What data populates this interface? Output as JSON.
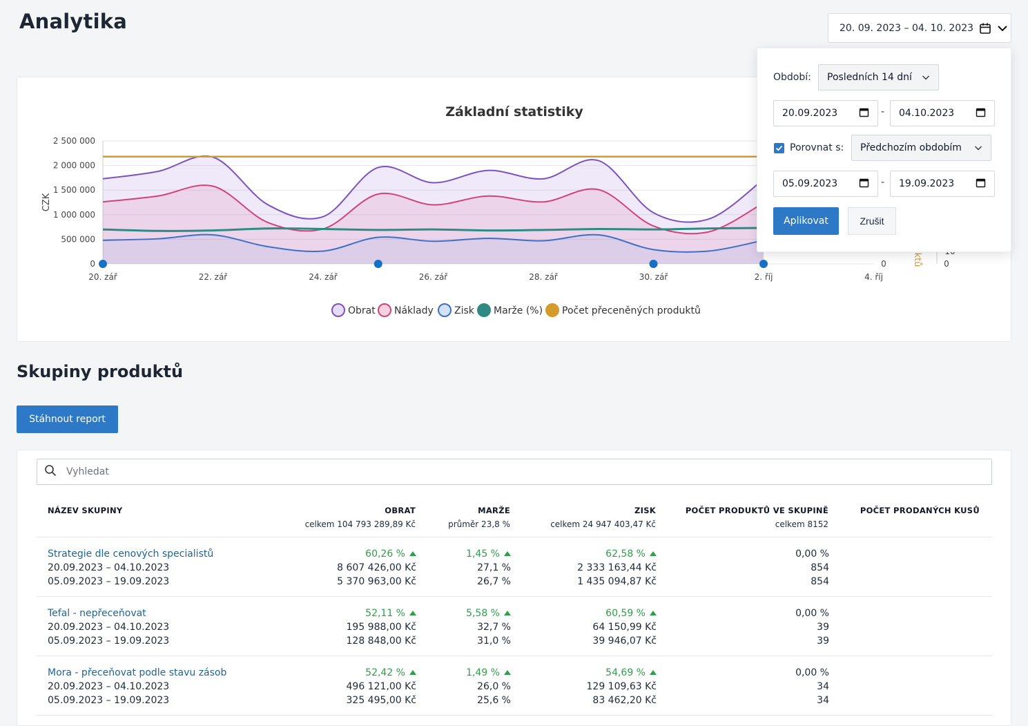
{
  "page": {
    "title": "Analytika",
    "date_range": "20. 09. 2023 – 04. 10. 2023"
  },
  "chart": {
    "title": "Základní statistiky",
    "ylabel": "CZK",
    "y_ticks": [
      "2 500 000",
      "2 000 000",
      "1 500 000",
      "1 000 000",
      "500 000",
      "0"
    ],
    "x_ticks": [
      "20. zář",
      "22. zář",
      "24. zář",
      "26. zář",
      "28. zář",
      "30. zář",
      "2. říj",
      "4. říj"
    ],
    "right_axis_zero": "0",
    "right_axis2_zero": "0",
    "right_axis_label_fragment": "ktů",
    "right_axis2_tick_fragment": "10",
    "legend": [
      "Obrat",
      "Náklady",
      "Zisk",
      "Marže (%)",
      "Počet přeceněných produktů"
    ],
    "colors": {
      "obrat": "#7b52c1",
      "naklady": "#d1437a",
      "zisk": "#3e6fc5",
      "marze": "#2f8a82",
      "pocet": "#d49a2c",
      "marker": "#1671c4"
    }
  },
  "chart_data": {
    "type": "line",
    "title": "Základní statistiky",
    "ylabel": "CZK",
    "x": [
      "20. zář",
      "21. zář",
      "22. zář",
      "23. zář",
      "24. zář",
      "25. zář",
      "26. zář",
      "27. zář",
      "28. zář",
      "29. zář",
      "30. zář",
      "1. říj",
      "2. říj"
    ],
    "ylim": [
      0,
      2500000
    ],
    "series": [
      {
        "name": "Obrat",
        "values": [
          1730000,
          1880000,
          2170000,
          1200000,
          960000,
          1960000,
          1650000,
          1900000,
          1730000,
          2100000,
          1040000,
          910000,
          1720000
        ]
      },
      {
        "name": "Náklady",
        "values": [
          1260000,
          1380000,
          1580000,
          840000,
          710000,
          1420000,
          1200000,
          1380000,
          1260000,
          1510000,
          770000,
          650000,
          1240000
        ]
      },
      {
        "name": "Zisk",
        "values": [
          480000,
          510000,
          590000,
          350000,
          260000,
          540000,
          460000,
          520000,
          470000,
          590000,
          290000,
          260000,
          480000
        ]
      },
      {
        "name": "Marže (%)",
        "values": [
          700000,
          670000,
          680000,
          720000,
          710000,
          690000,
          700000,
          680000,
          690000,
          710000,
          700000,
          720000,
          730000
        ]
      },
      {
        "name": "Počet přeceněných produktů",
        "values": [
          2180000,
          2180000,
          2180000,
          2180000,
          2180000,
          2180000,
          2180000,
          2180000,
          2180000,
          2180000,
          2180000,
          2180000,
          2180000
        ]
      }
    ],
    "markers_x": [
      "20. zář",
      "25. zář",
      "30. zář",
      "2. říj"
    ]
  },
  "products": {
    "title": "Skupiny produktů",
    "report_button": "Stáhnout report",
    "search_placeholder": "Vyhledat",
    "columns": {
      "name": "NÁZEV SKUPINY",
      "obrat": "OBRAT",
      "obrat_sub": "celkem 104 793 289,89 Kč",
      "marze": "MARŽE",
      "marze_sub": "průměr 23,8 %",
      "zisk": "ZISK",
      "zisk_sub": "celkem 24 947 403,47 Kč",
      "count": "POČET PRODUKTŮ VE SKUPINĚ",
      "count_sub": "celkem 8152",
      "sold": "POČET PRODANÝCH KUSŮ"
    },
    "rows": [
      {
        "name": "Strategie dle cenových specialistů",
        "period1": "20.09.2023 – 04.10.2023",
        "period2": "05.09.2023 – 19.09.2023",
        "obrat_change": "60,26 %",
        "obrat1": "8 607 426,00 Kč",
        "obrat2": "5 370 963,00 Kč",
        "marze_change": "1,45 %",
        "marze1": "27,1 %",
        "marze2": "26,7 %",
        "zisk_change": "62,58 %",
        "zisk1": "2 333 163,44 Kč",
        "zisk2": "1 435 094,87 Kč",
        "count_change": "0,00 %",
        "count1": "854",
        "count2": "854"
      },
      {
        "name": "Tefal - nepřeceňovat",
        "period1": "20.09.2023 – 04.10.2023",
        "period2": "05.09.2023 – 19.09.2023",
        "obrat_change": "52,11 %",
        "obrat1": "195 988,00 Kč",
        "obrat2": "128 848,00 Kč",
        "marze_change": "5,58 %",
        "marze1": "32,7 %",
        "marze2": "31,0 %",
        "zisk_change": "60,59 %",
        "zisk1": "64 150,99 Kč",
        "zisk2": "39 946,07 Kč",
        "count_change": "0,00 %",
        "count1": "39",
        "count2": "39"
      },
      {
        "name": "Mora - přeceňovat podle stavu zásob",
        "period1": "20.09.2023 – 04.10.2023",
        "period2": "05.09.2023 – 19.09.2023",
        "obrat_change": "52,42 %",
        "obrat1": "496 121,00 Kč",
        "obrat2": "325 495,00 Kč",
        "marze_change": "1,49 %",
        "marze1": "26,0 %",
        "marze2": "25,6 %",
        "zisk_change": "54,69 %",
        "zisk1": "129 109,63 Kč",
        "zisk2": "83 462,20 Kč",
        "count_change": "0,00 %",
        "count1": "34",
        "count2": "34"
      }
    ]
  },
  "picker": {
    "period_label": "Období:",
    "period_value": "Posledních 14 dní",
    "from": "20.09.2023",
    "to": "04.10.2023",
    "dash": "-",
    "compare_label": "Porovnat s:",
    "compare_checked": true,
    "compare_value": "Předchozím obdobím",
    "cmp_from": "05.09.2023",
    "cmp_to": "19.09.2023",
    "apply": "Aplikovat",
    "cancel": "Zrušit"
  }
}
